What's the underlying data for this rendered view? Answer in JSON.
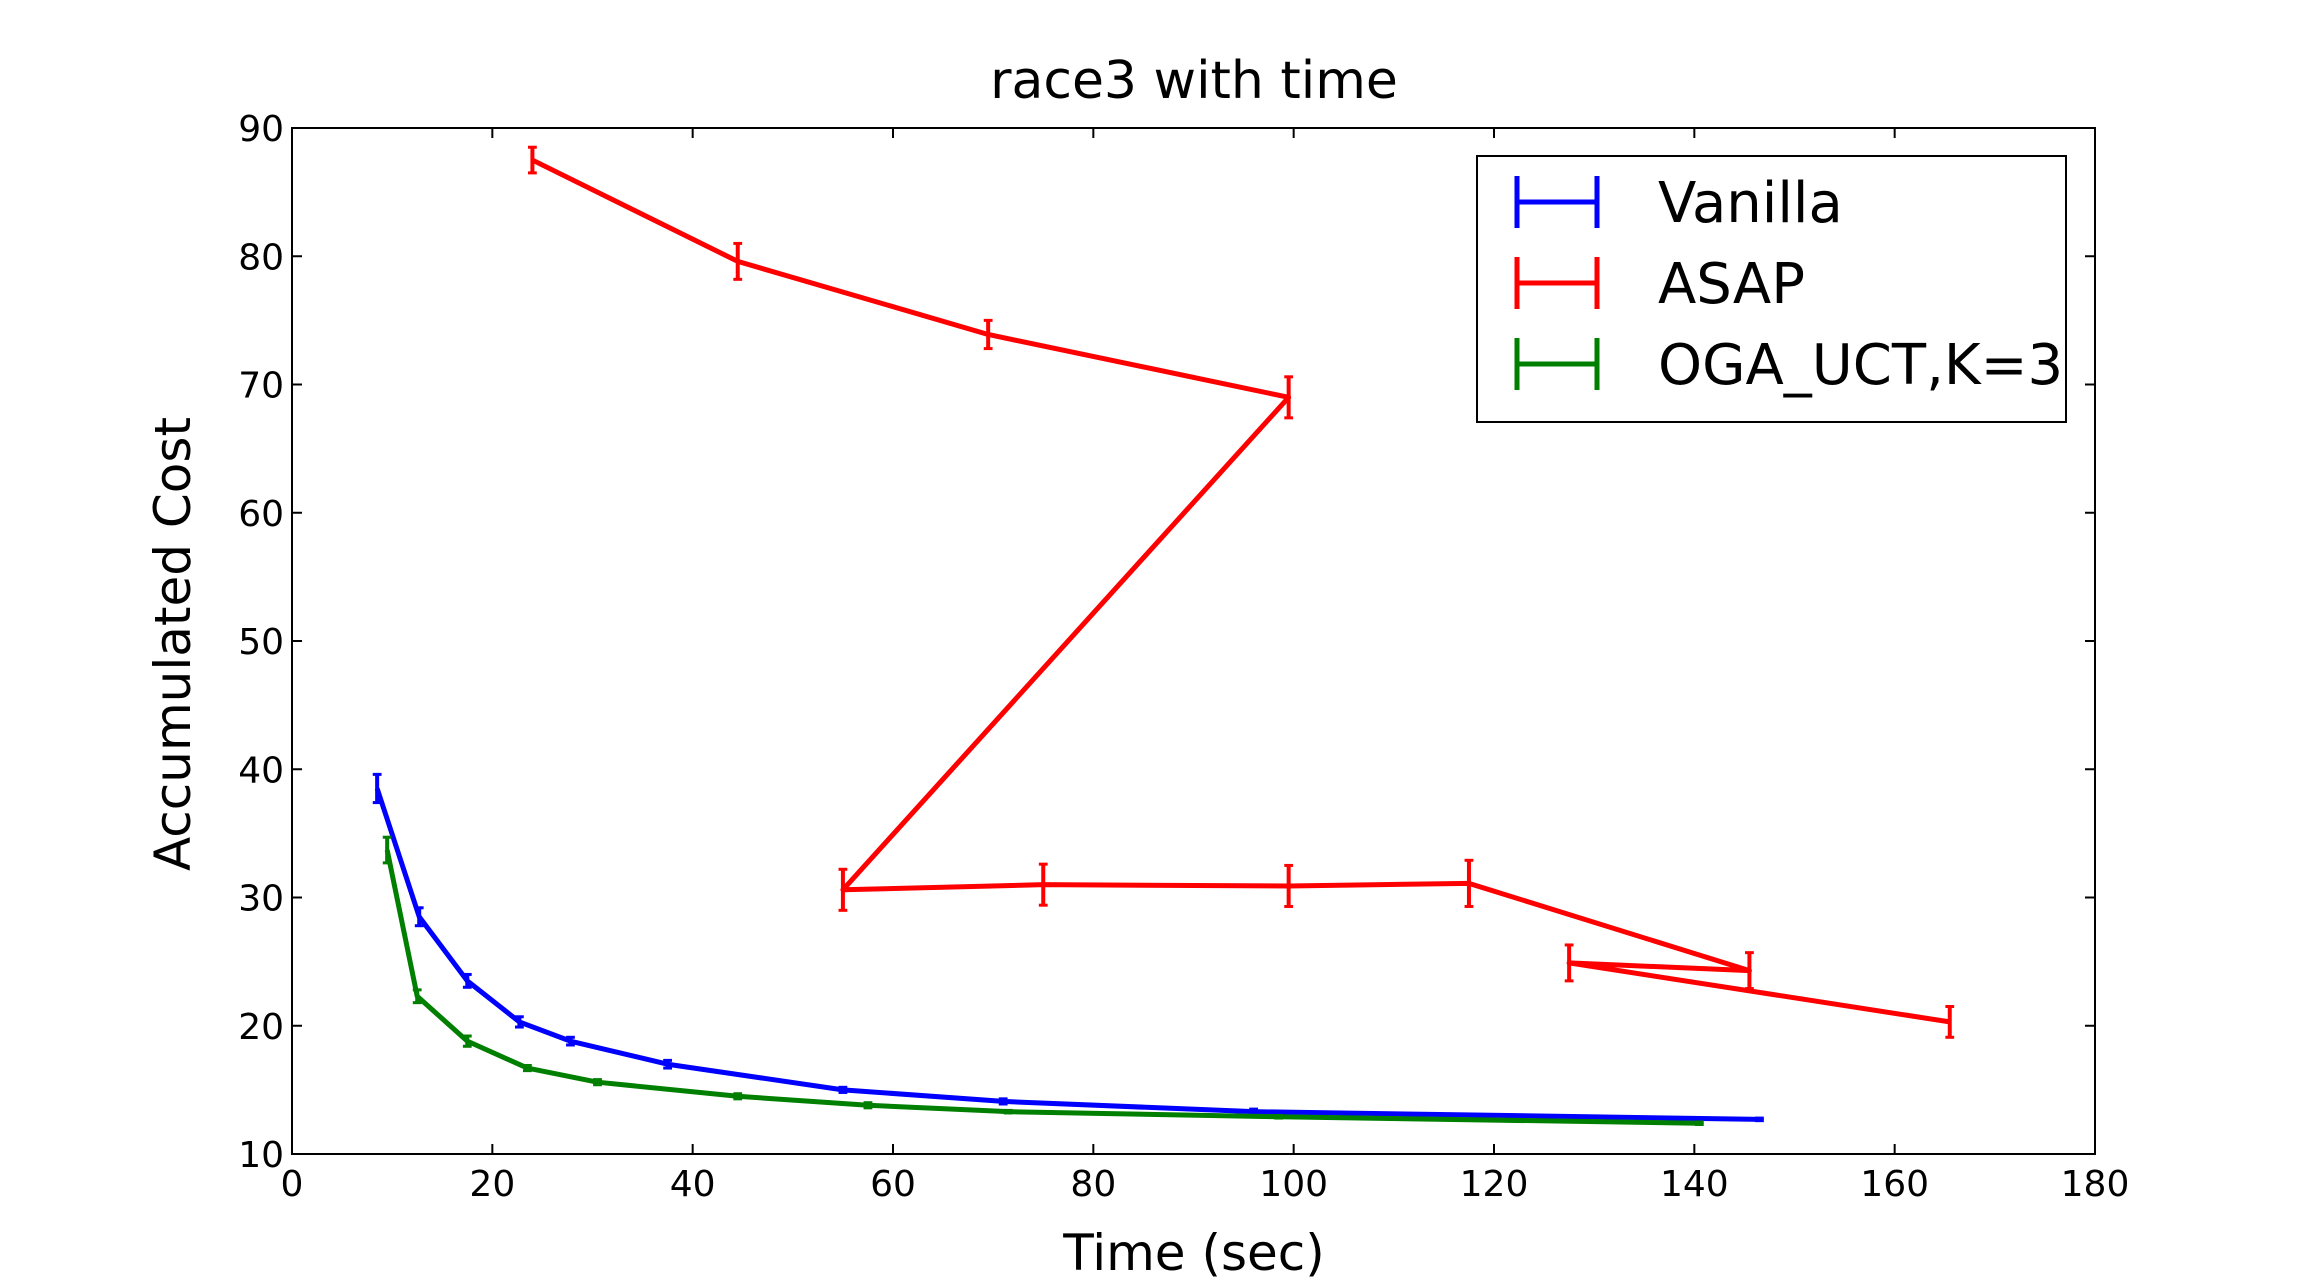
{
  "chart_data": {
    "type": "line",
    "title": "race3 with time",
    "xlabel": "Time (sec)",
    "ylabel": "Accumulated Cost",
    "xlim": [
      0,
      180
    ],
    "ylim": [
      10,
      90
    ],
    "x_ticks": [
      0,
      20,
      40,
      60,
      80,
      100,
      120,
      140,
      160,
      180
    ],
    "y_ticks": [
      10,
      20,
      30,
      40,
      50,
      60,
      70,
      80,
      90
    ],
    "grid": false,
    "legend_position": "top-right",
    "series": [
      {
        "name": "Vanilla",
        "color": "#0000ff",
        "points": [
          {
            "x": 8.5,
            "y": 38.5,
            "err": 1.1
          },
          {
            "x": 12.7,
            "y": 28.5,
            "err": 0.7
          },
          {
            "x": 17.5,
            "y": 23.5,
            "err": 0.5
          },
          {
            "x": 22.7,
            "y": 20.3,
            "err": 0.4
          },
          {
            "x": 27.8,
            "y": 18.8,
            "err": 0.3
          },
          {
            "x": 37.5,
            "y": 17.0,
            "err": 0.3
          },
          {
            "x": 55.0,
            "y": 15.0,
            "err": 0.2
          },
          {
            "x": 71.0,
            "y": 14.1,
            "err": 0.2
          },
          {
            "x": 96.0,
            "y": 13.3,
            "err": 0.2
          },
          {
            "x": 146.5,
            "y": 12.7,
            "err": 0.1
          }
        ]
      },
      {
        "name": "ASAP",
        "color": "#ff0000",
        "points": [
          {
            "x": 24.0,
            "y": 87.5,
            "err": 1.0
          },
          {
            "x": 44.5,
            "y": 79.6,
            "err": 1.4
          },
          {
            "x": 69.5,
            "y": 73.9,
            "err": 1.1
          },
          {
            "x": 99.5,
            "y": 69.0,
            "err": 1.6
          },
          {
            "x": 55.0,
            "y": 30.6,
            "err": 1.6
          },
          {
            "x": 75.0,
            "y": 31.0,
            "err": 1.6
          },
          {
            "x": 99.5,
            "y": 30.9,
            "err": 1.6
          },
          {
            "x": 117.5,
            "y": 31.1,
            "err": 1.8
          },
          {
            "x": 145.5,
            "y": 24.3,
            "err": 1.4
          },
          {
            "x": 127.5,
            "y": 24.9,
            "err": 1.4
          },
          {
            "x": 165.5,
            "y": 20.3,
            "err": 1.2
          }
        ]
      },
      {
        "name": "OGA_UCT,K=3",
        "color": "#007f00",
        "points": [
          {
            "x": 9.5,
            "y": 33.7,
            "err": 1.0
          },
          {
            "x": 12.5,
            "y": 22.3,
            "err": 0.5
          },
          {
            "x": 17.5,
            "y": 18.8,
            "err": 0.4
          },
          {
            "x": 23.5,
            "y": 16.7,
            "err": 0.2
          },
          {
            "x": 30.5,
            "y": 15.6,
            "err": 0.2
          },
          {
            "x": 44.5,
            "y": 14.5,
            "err": 0.2
          },
          {
            "x": 57.5,
            "y": 13.8,
            "err": 0.2
          },
          {
            "x": 71.5,
            "y": 13.3,
            "err": 0.1
          },
          {
            "x": 98.5,
            "y": 12.9,
            "err": 0.1
          },
          {
            "x": 140.5,
            "y": 12.4,
            "err": 0.1
          }
        ]
      }
    ]
  }
}
